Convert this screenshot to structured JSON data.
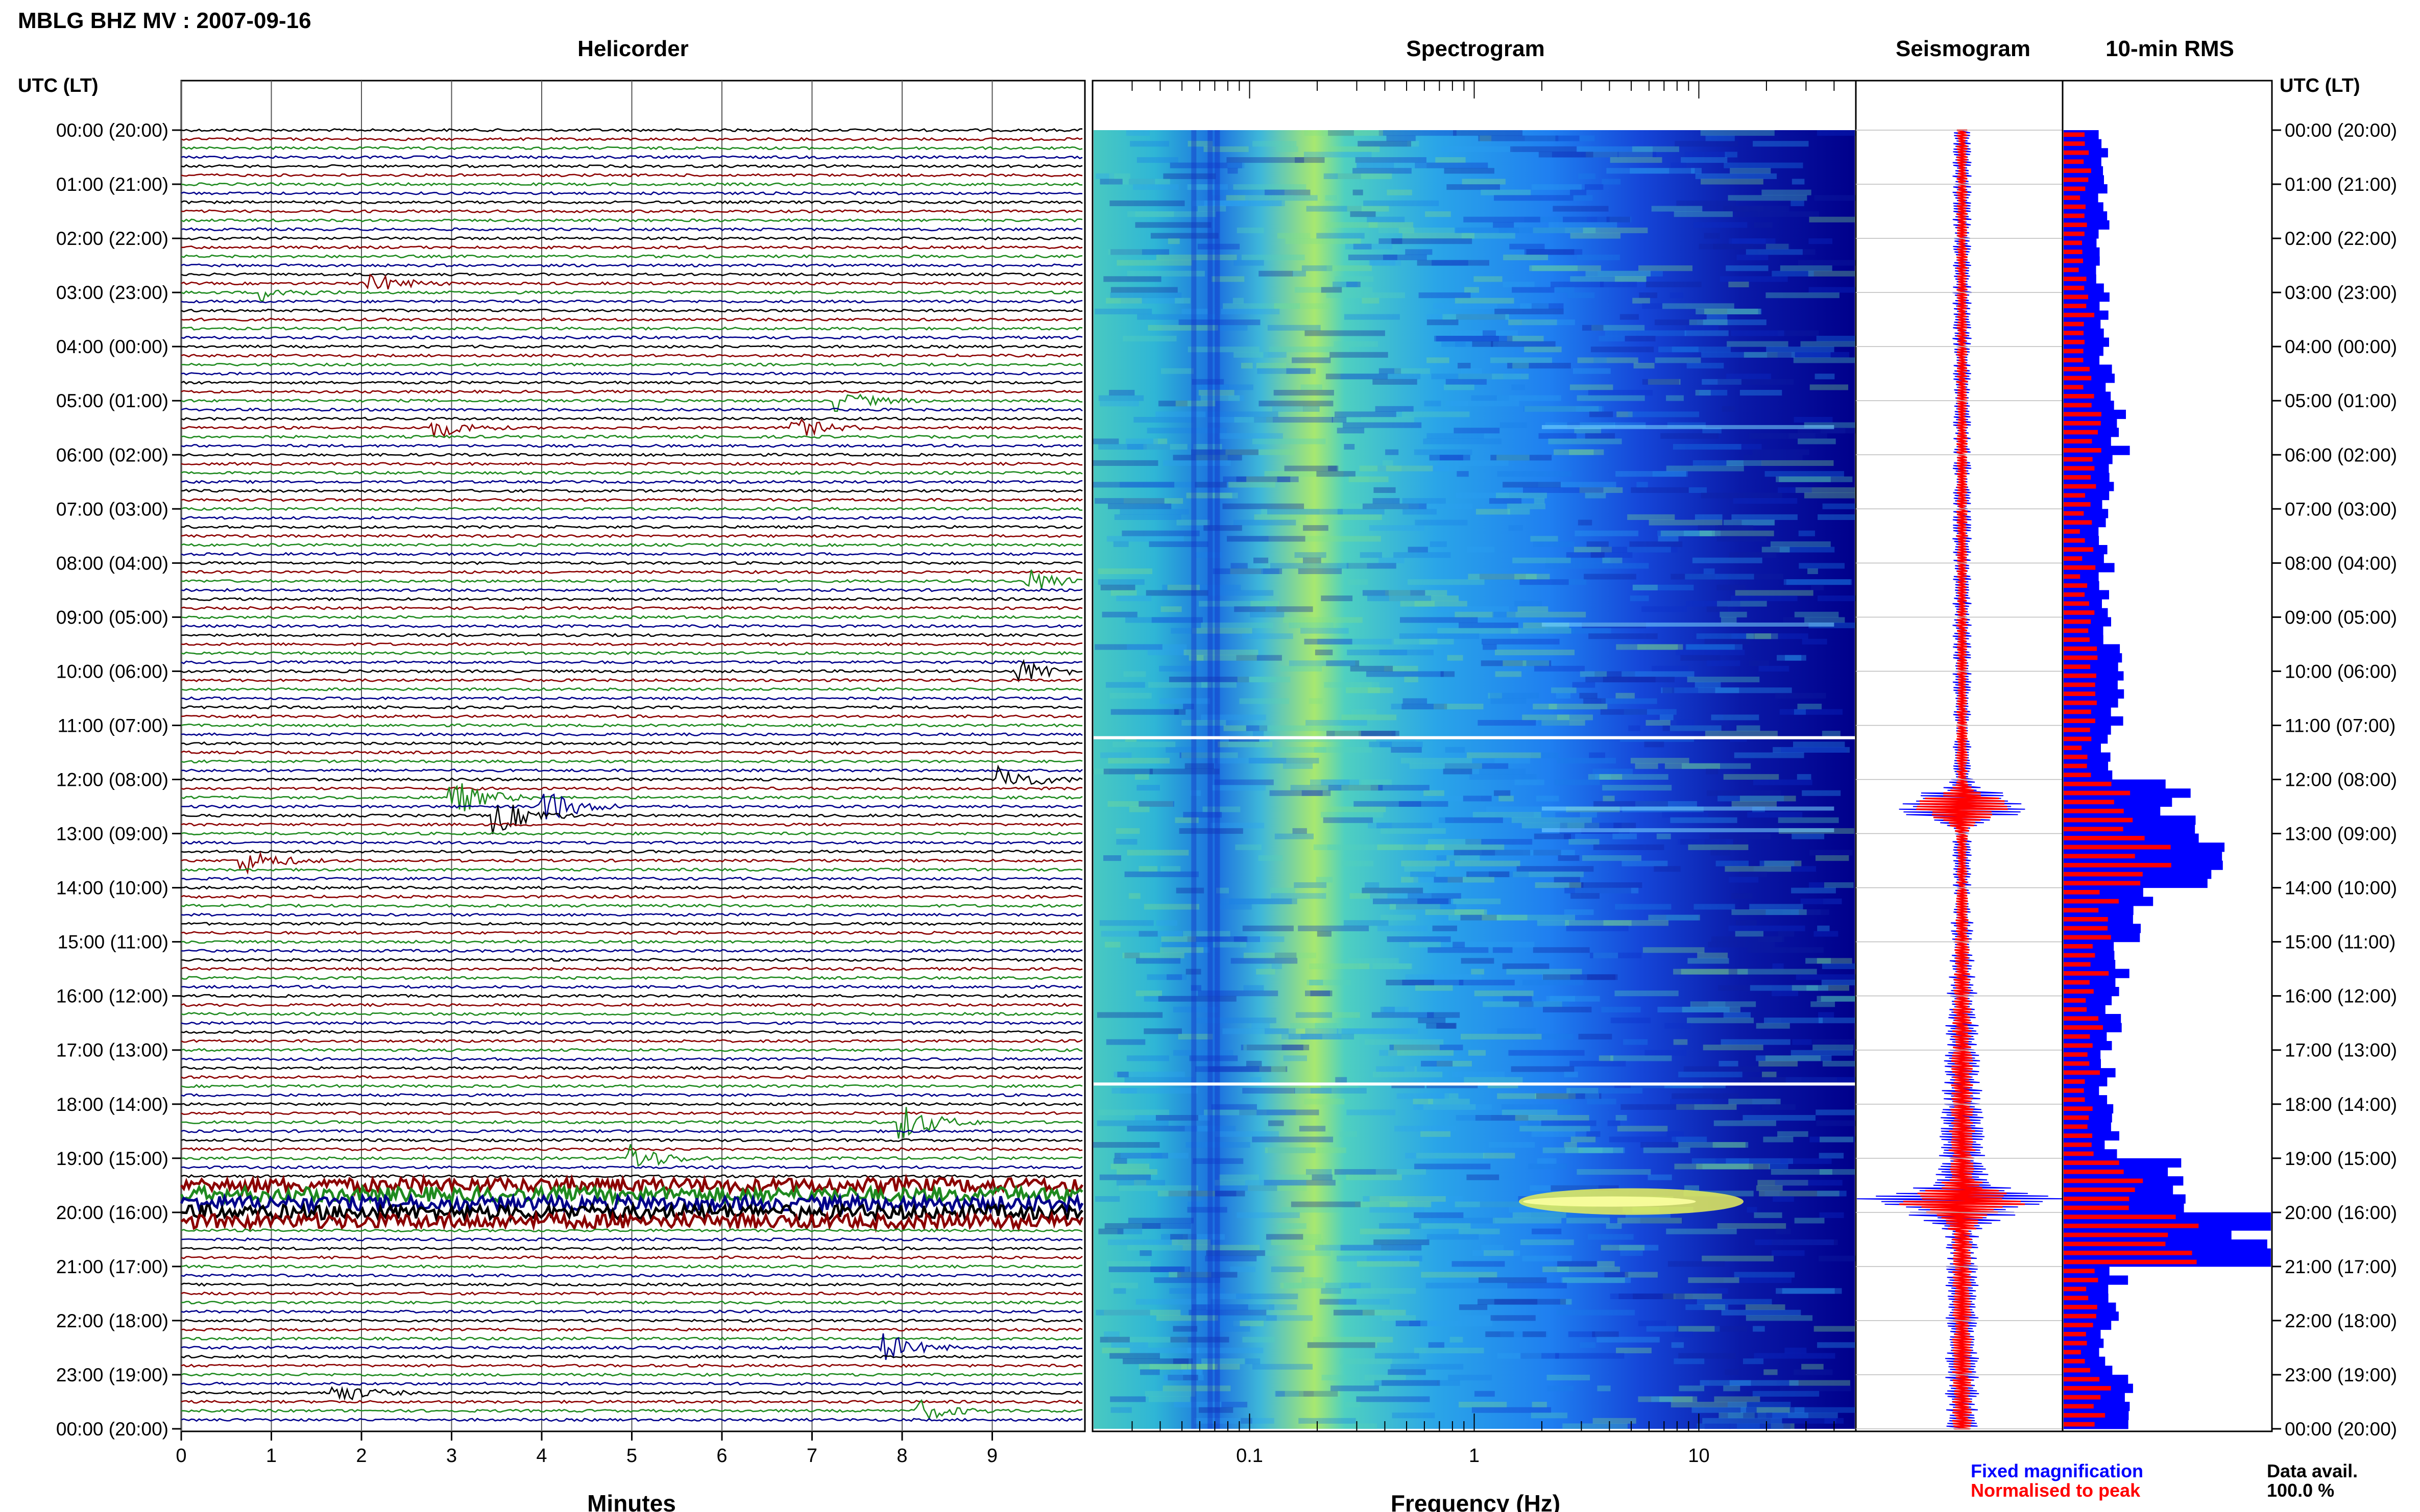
{
  "header": {
    "station_title": "MBLG BHZ MV : 2007-09-16",
    "panel_titles": [
      "Helicorder",
      "Spectrogram",
      "Seismogram",
      "10-min RMS"
    ],
    "left_axis_title": "UTC (LT)",
    "right_axis_title": "UTC (LT)"
  },
  "footer": {
    "x_label_helicorder": "Minutes",
    "x_label_spectrogram": "Frequency (Hz)",
    "legend_fixed": "Fixed magnification",
    "legend_normalised": "Normalised to peak",
    "data_avail_label": "Data avail.",
    "data_avail_value": "100.0 %"
  },
  "colors": {
    "trace_cycle": [
      "#000000",
      "#8b0000",
      "#1f8a1f",
      "#00008b"
    ],
    "fixed_magnification": "#0000ff",
    "normalised_to_peak": "#ff0000",
    "spectrogram_low": "#00008b",
    "spectrogram_mid": "#1e90ff",
    "spectrogram_high": "#ffff00"
  },
  "chart_data": [
    {
      "type": "helicorder",
      "title": "Helicorder",
      "xlabel": "Minutes",
      "x_ticks": [
        "0",
        "1",
        "2",
        "3",
        "4",
        "5",
        "6",
        "7",
        "8",
        "9"
      ],
      "xlim": [
        0,
        10
      ],
      "y_ticks": [
        "00:00 (20:00)",
        "01:00 (21:00)",
        "02:00 (22:00)",
        "03:00 (23:00)",
        "04:00 (00:00)",
        "05:00 (01:00)",
        "06:00 (02:00)",
        "07:00 (03:00)",
        "08:00 (04:00)",
        "09:00 (05:00)",
        "10:00 (06:00)",
        "11:00 (07:00)",
        "12:00 (08:00)",
        "13:00 (09:00)",
        "14:00 (10:00)",
        "15:00 (11:00)",
        "16:00 (12:00)",
        "17:00 (13:00)",
        "18:00 (14:00)",
        "19:00 (15:00)",
        "20:00 (16:00)",
        "21:00 (17:00)",
        "22:00 (18:00)",
        "23:00 (19:00)",
        "00:00 (20:00)"
      ],
      "line_minutes": 10,
      "events": [
        {
          "hour": 2.85,
          "minute": 2.1,
          "strength": 0.5
        },
        {
          "hour": 3.0,
          "minute": 0.9,
          "strength": 0.4
        },
        {
          "hour": 5.0,
          "minute": 7.3,
          "strength": 0.5
        },
        {
          "hour": 5.5,
          "minute": 2.8,
          "strength": 0.5
        },
        {
          "hour": 5.5,
          "minute": 6.8,
          "strength": 0.5
        },
        {
          "hour": 8.3,
          "minute": 9.4,
          "strength": 0.6
        },
        {
          "hour": 10.0,
          "minute": 9.3,
          "strength": 0.6
        },
        {
          "hour": 12.0,
          "minute": 9.1,
          "strength": 0.7
        },
        {
          "hour": 12.3,
          "minute": 3.0,
          "strength": 1.0
        },
        {
          "hour": 12.5,
          "minute": 4.0,
          "strength": 1.0
        },
        {
          "hour": 12.7,
          "minute": 3.5,
          "strength": 0.9
        },
        {
          "hour": 13.5,
          "minute": 0.7,
          "strength": 0.6
        },
        {
          "hour": 18.3,
          "minute": 8.0,
          "strength": 0.9
        },
        {
          "hour": 19.0,
          "minute": 5.0,
          "strength": 0.7
        },
        {
          "hour": 22.5,
          "minute": 7.8,
          "strength": 0.7
        },
        {
          "hour": 23.3,
          "minute": 1.7,
          "strength": 0.5
        },
        {
          "hour": 23.7,
          "minute": 8.2,
          "strength": 0.5
        }
      ],
      "tremor_hours": [
        19.5,
        20.2
      ]
    },
    {
      "type": "heatmap",
      "title": "Spectrogram",
      "xlabel": "Frequency (Hz)",
      "x_scale": "log",
      "xlim": [
        0.02,
        50
      ],
      "x_ticks": [
        "0.1",
        "1",
        "10"
      ],
      "dominant_band_hz": [
        0.15,
        0.35
      ],
      "gaps_hours": [
        11.2,
        17.6
      ],
      "strong_signal": {
        "hour": 19.8,
        "freq_hz": [
          1.5,
          15
        ]
      }
    },
    {
      "type": "line",
      "title": "Seismogram",
      "series": [
        {
          "name": "Fixed magnification",
          "color": "#0000ff"
        },
        {
          "name": "Normalised to peak",
          "color": "#ff0000"
        }
      ],
      "peaks_hours": [
        12.5,
        19.8
      ]
    },
    {
      "type": "bar",
      "title": "10-min RMS",
      "orientation": "horizontal",
      "series": [
        {
          "name": "Fixed magnification",
          "color": "#0000ff"
        },
        {
          "name": "Normalised to peak",
          "color": "#ff0000"
        }
      ],
      "hourly_rms_fixed": [
        0.2,
        0.2,
        0.19,
        0.2,
        0.22,
        0.3,
        0.22,
        0.2,
        0.22,
        0.25,
        0.28,
        0.22,
        0.6,
        0.85,
        0.4,
        0.28,
        0.25,
        0.22,
        0.25,
        0.55,
        1.0,
        0.28,
        0.22,
        0.3
      ]
    }
  ]
}
